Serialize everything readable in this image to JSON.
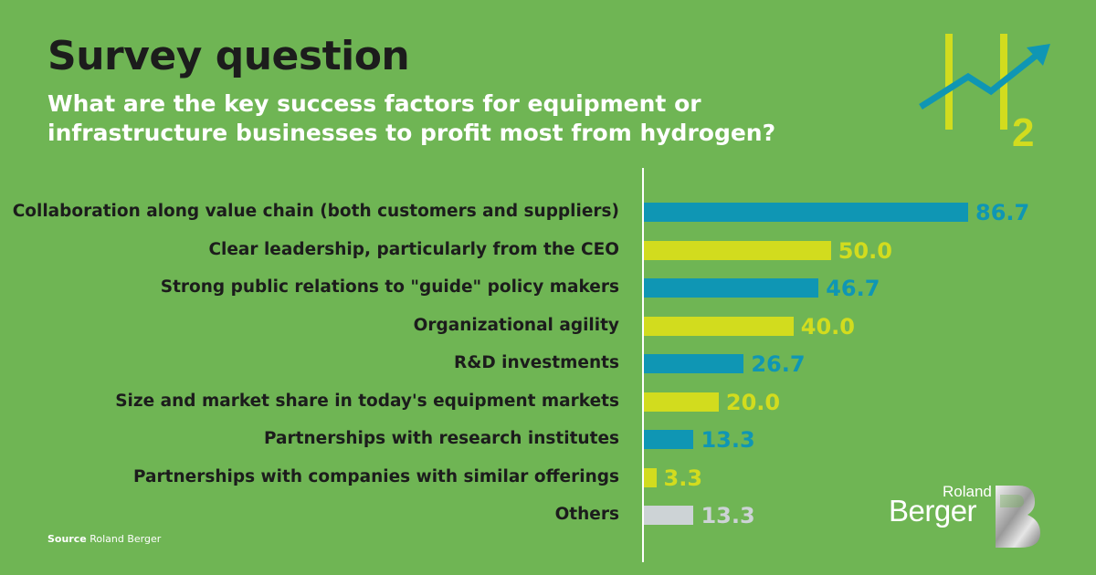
{
  "header": {
    "title": "Survey question",
    "subtitle": "What are the key success factors for equipment or infrastructure businesses to profit most from hydrogen?"
  },
  "source": {
    "prefix": "Source",
    "text": "Roland Berger"
  },
  "logos": {
    "brand_top": "Roland",
    "brand_bottom": "Berger",
    "h2_icon": "h2-growth-icon"
  },
  "colors": {
    "background": "#6fb554",
    "blue": "#0f96b4",
    "yellow": "#d2dc1e",
    "grey": "#cdd3d6"
  },
  "chart_data": {
    "type": "bar",
    "orientation": "horizontal",
    "title": "Survey question",
    "categories": [
      "Collaboration along value chain (both customers and suppliers)",
      "Clear leadership, particularly from the CEO",
      "Strong public relations to \"guide\" policy makers",
      "Organizational agility",
      "R&D investments",
      "Size and market share in today's equipment markets",
      "Partnerships with research institutes",
      "Partnerships with companies with similar offerings",
      "Others"
    ],
    "values": [
      86.7,
      50.0,
      46.7,
      40.0,
      26.7,
      20.0,
      13.3,
      3.3,
      13.3
    ],
    "value_labels": [
      "86.7",
      "50.0",
      "46.7",
      "40.0",
      "26.7",
      "20.0",
      "13.3",
      "3.3",
      "13.3"
    ],
    "bar_colors": [
      "#0f96b4",
      "#d2dc1e",
      "#0f96b4",
      "#d2dc1e",
      "#0f96b4",
      "#d2dc1e",
      "#0f96b4",
      "#d2dc1e",
      "#cdd3d6"
    ],
    "xlim": [
      0,
      100
    ],
    "grid": false,
    "legend": "none"
  }
}
